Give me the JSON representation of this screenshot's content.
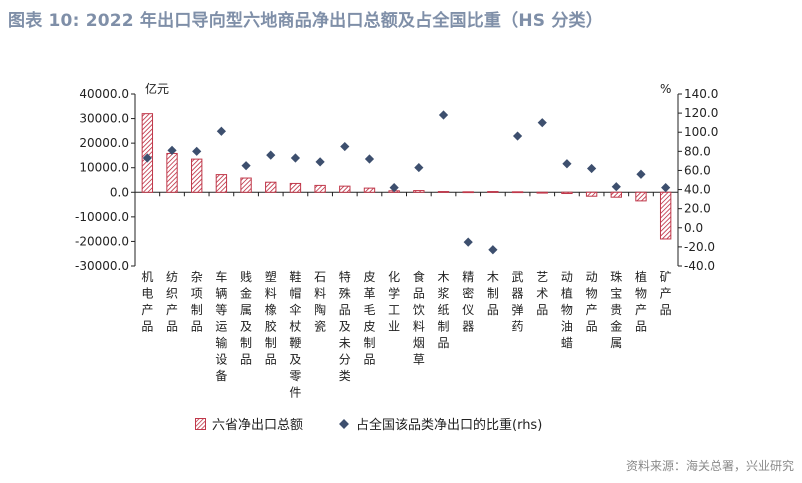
{
  "title": "图表 10: 2022 年出口导向型六地商品净出口总额及占全国比重（HS 分类）",
  "source": "资料来源：海关总署，兴业研究",
  "colors": {
    "bar": "#c0384a",
    "dot": "#3d4f6e",
    "title": "#7f8fa8",
    "axis": "#222222"
  },
  "chart_data": {
    "type": "bar",
    "categories": [
      "机电产品",
      "纺织产品",
      "杂项制品",
      "车辆等运输设备",
      "贱金属及制品",
      "塑料橡胶制品",
      "鞋帽伞杖鞭及零件",
      "石料陶瓷",
      "特殊品及未分类",
      "皮革毛皮制品",
      "化学工业",
      "食品饮料烟草",
      "木浆纸制品",
      "精密仪器",
      "木制品",
      "武器弹药",
      "艺术品",
      "动植物油蜡",
      "动物产品",
      "珠宝贵金属",
      "植物产品",
      "矿产品"
    ],
    "series": [
      {
        "name": "六省净出口总额",
        "type": "bar",
        "axis": "left",
        "values": [
          32000,
          15800,
          13500,
          7200,
          5800,
          4100,
          3600,
          2800,
          2500,
          1700,
          600,
          700,
          300,
          200,
          300,
          200,
          -200,
          -500,
          -1600,
          -2000,
          -3500,
          -19000
        ]
      },
      {
        "name": "占全国该品类净出口的比重(rhs)",
        "type": "scatter",
        "axis": "right",
        "values": [
          73,
          81,
          80,
          101,
          65,
          76,
          73,
          69,
          85,
          72,
          42,
          63,
          118,
          -15,
          -23,
          96,
          110,
          67,
          62,
          43,
          56,
          42
        ]
      }
    ],
    "yleft": {
      "unit": "亿元",
      "ylim": [
        -30000,
        40000
      ],
      "ticks": [
        "-30000.0",
        "-20000.0",
        "-10000.0",
        "0.0",
        "10000.0",
        "20000.0",
        "30000.0",
        "40000.0"
      ]
    },
    "yright": {
      "unit": "%",
      "ylim": [
        -40,
        140
      ],
      "ticks": [
        "-40.0",
        "-20.0",
        "0.0",
        "20.0",
        "40.0",
        "60.0",
        "80.0",
        "100.0",
        "120.0",
        "140.0"
      ]
    },
    "grid": false,
    "legend": "bottom"
  }
}
